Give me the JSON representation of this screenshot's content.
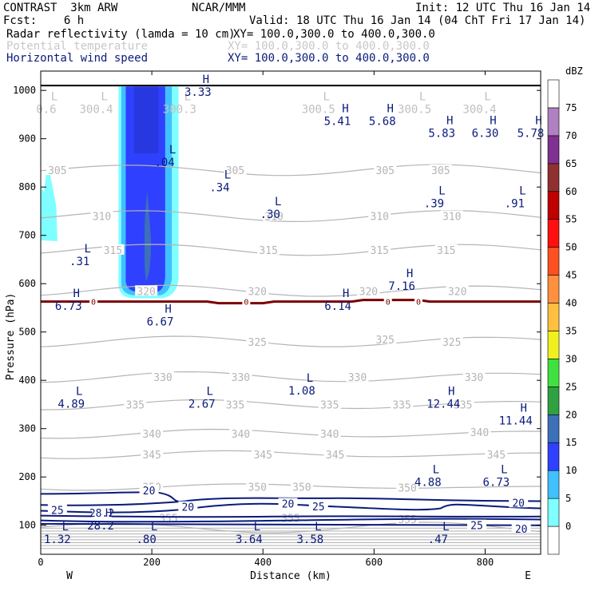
{
  "header": {
    "model": "CONTRAST  3km ARW",
    "org": "NCAR/MMM",
    "init": "Init: 12 UTC Thu 16 Jan 14",
    "fcst": "Fcst:    6 h",
    "valid": "Valid: 18 UTC Thu 16 Jan 14 (04 ChT Fri 17 Jan 14)",
    "field1_name": "Radar reflectivity (lamda = 10 cm)",
    "field1_xy": "XY= 100.0,300.0 to 400.0,300.0",
    "field2_name": "Potential temperature",
    "field2_xy": "XY= 100.0,300.0 to 400.0,300.0",
    "field3_name": "Horizontal wind speed",
    "field3_xy": "XY= 100.0,300.0 to 400.0,300.0"
  },
  "colors": {
    "navy": "#0a1a7a",
    "theta": "#b4b4b4",
    "freezing": "#7a0000",
    "ground": "#000000"
  },
  "chart_data": {
    "type": "cross-section",
    "xlabel": "Distance (km)",
    "ylabel": "Pressure (hPa)",
    "xlim": [
      0,
      900
    ],
    "ylim": [
      1040,
      40
    ],
    "x_ticks": [
      0,
      200,
      400,
      600,
      800
    ],
    "y_ticks": [
      100,
      200,
      300,
      400,
      500,
      600,
      700,
      800,
      900,
      1000
    ],
    "west_label": "W",
    "east_label": "E",
    "ground_p": 1010,
    "colorbar": {
      "unit": "dBZ",
      "levels": [
        0,
        5,
        10,
        15,
        20,
        25,
        30,
        35,
        40,
        45,
        50,
        55,
        60,
        65,
        70,
        75
      ],
      "colors": [
        "#ffffff",
        "#7fffff",
        "#40c0ff",
        "#3040ff",
        "#3c70b8",
        "#30a040",
        "#40e040",
        "#f0f020",
        "#ffc040",
        "#ff9040",
        "#ff5020",
        "#ff1010",
        "#c00000",
        "#903030",
        "#803090",
        "#b080c0",
        "#ffffff"
      ]
    },
    "theta_contours": [
      {
        "value": 350,
        "p": 180,
        "labels": [
          [
            200,
            180
          ],
          [
            390,
            180
          ],
          [
            470,
            180
          ],
          [
            660,
            178
          ]
        ]
      },
      {
        "value": 345,
        "p": 247,
        "labels": [
          [
            200,
            247
          ],
          [
            400,
            247
          ],
          [
            530,
            247
          ],
          [
            820,
            247
          ]
        ]
      },
      {
        "value": 340,
        "p": 290,
        "labels": [
          [
            200,
            290
          ],
          [
            360,
            290
          ],
          [
            520,
            290
          ],
          [
            790,
            293
          ]
        ]
      },
      {
        "value": 335,
        "p": 350,
        "labels": [
          [
            170,
            350
          ],
          [
            350,
            350
          ],
          [
            520,
            350
          ],
          [
            650,
            350
          ],
          [
            760,
            350
          ]
        ]
      },
      {
        "value": 330,
        "p": 407,
        "labels": [
          [
            220,
            407
          ],
          [
            360,
            407
          ],
          [
            570,
            407
          ],
          [
            780,
            407
          ]
        ]
      },
      {
        "value": 325,
        "p": 480,
        "labels": [
          [
            390,
            480
          ],
          [
            620,
            485
          ],
          [
            740,
            480
          ]
        ]
      },
      {
        "value": 320,
        "p": 585,
        "labels": [
          [
            190,
            585
          ],
          [
            390,
            585
          ],
          [
            590,
            585
          ],
          [
            750,
            585
          ]
        ]
      },
      {
        "value": 315,
        "p": 670,
        "labels": [
          [
            130,
            670
          ],
          [
            410,
            670
          ],
          [
            610,
            670
          ],
          [
            730,
            670
          ]
        ]
      },
      {
        "value": 310,
        "p": 740,
        "labels": [
          [
            110,
            740
          ],
          [
            420,
            740
          ],
          [
            610,
            740
          ],
          [
            740,
            740
          ]
        ]
      },
      {
        "value": 305,
        "p": 835,
        "labels": [
          [
            30,
            835
          ],
          [
            350,
            835
          ],
          [
            620,
            835
          ],
          [
            720,
            835
          ]
        ]
      },
      {
        "value": 355,
        "p": 95,
        "labels": [
          [
            230,
            115
          ],
          [
            450,
            115
          ],
          [
            660,
            113
          ]
        ]
      }
    ],
    "freezing_level": {
      "value": 0,
      "p": 563,
      "label_x": [
        95,
        370,
        625,
        680
      ]
    },
    "wind_labels": [
      {
        "text": "25",
        "x": 30,
        "p": 132
      },
      {
        "text": "28.2",
        "x": 110,
        "p": 126
      },
      {
        "text": "20",
        "x": 265,
        "p": 138
      },
      {
        "text": "20",
        "x": 445,
        "p": 145
      },
      {
        "text": "25",
        "x": 500,
        "p": 139
      },
      {
        "text": "20",
        "x": 195,
        "p": 172
      },
      {
        "text": "20",
        "x": 860,
        "p": 147
      },
      {
        "text": "25",
        "x": 785,
        "p": 100
      },
      {
        "text": "20",
        "x": 865,
        "p": 93
      }
    ],
    "extrema": [
      {
        "t": "L",
        "v": "1.32",
        "x": 30,
        "p": 80,
        "c": "navy"
      },
      {
        "t": "L",
        "v": ".80",
        "x": 190,
        "p": 80,
        "c": "navy"
      },
      {
        "t": "L",
        "v": "3.64",
        "x": 375,
        "p": 80,
        "c": "navy"
      },
      {
        "t": "L",
        "v": "3.58",
        "x": 485,
        "p": 80,
        "c": "navy"
      },
      {
        "t": "L",
        "v": ".47",
        "x": 715,
        "p": 80,
        "c": "navy"
      },
      {
        "t": "H",
        "v": "28.2",
        "x": 108,
        "p": 108,
        "c": "navy"
      },
      {
        "t": "L",
        "v": "4.88",
        "x": 697,
        "p": 198,
        "c": "navy"
      },
      {
        "t": "L",
        "v": "6.73",
        "x": 820,
        "p": 198,
        "c": "navy"
      },
      {
        "t": "H",
        "v": "11.44",
        "x": 855,
        "p": 325,
        "c": "navy"
      },
      {
        "t": "L",
        "v": "4.89",
        "x": 55,
        "p": 360,
        "c": "navy"
      },
      {
        "t": "L",
        "v": "2.67",
        "x": 290,
        "p": 360,
        "c": "navy"
      },
      {
        "t": "H",
        "v": "12.44",
        "x": 725,
        "p": 360,
        "c": "navy"
      },
      {
        "t": "L",
        "v": "1.08",
        "x": 470,
        "p": 387,
        "c": "navy"
      },
      {
        "t": "H",
        "v": "6.67",
        "x": 215,
        "p": 530,
        "c": "navy"
      },
      {
        "t": "H",
        "v": "6.73",
        "x": 50,
        "p": 562,
        "c": "navy"
      },
      {
        "t": "H",
        "v": "6.14",
        "x": 535,
        "p": 562,
        "c": "navy"
      },
      {
        "t": "H",
        "v": "7.16",
        "x": 650,
        "p": 604,
        "c": "navy"
      },
      {
        "t": "L",
        "v": ".31",
        "x": 70,
        "p": 655,
        "c": "navy"
      },
      {
        "t": "L",
        "v": ".30",
        "x": 413,
        "p": 752,
        "c": "navy"
      },
      {
        "t": "L",
        "v": ".39",
        "x": 708,
        "p": 775,
        "c": "navy"
      },
      {
        "t": "L",
        "v": ".91",
        "x": 853,
        "p": 775,
        "c": "navy"
      },
      {
        "t": "L",
        "v": ".34",
        "x": 322,
        "p": 808,
        "c": "navy"
      },
      {
        "t": "L",
        "v": ".04",
        "x": 223,
        "p": 860,
        "c": "navy"
      },
      {
        "t": "H",
        "v": "5.83",
        "x": 722,
        "p": 920,
        "c": "navy"
      },
      {
        "t": "H",
        "v": "6.30",
        "x": 800,
        "p": 920,
        "c": "navy"
      },
      {
        "t": "H",
        "v": "5.78",
        "x": 882,
        "p": 920,
        "c": "navy"
      },
      {
        "t": "H",
        "v": "5.41",
        "x": 534,
        "p": 945,
        "c": "navy"
      },
      {
        "t": "H",
        "v": "5.68",
        "x": 615,
        "p": 945,
        "c": "navy"
      },
      {
        "t": "L",
        "v": "0.6",
        "x": 10,
        "p": 970,
        "c": "gray"
      },
      {
        "t": "L",
        "v": "300.4",
        "x": 100,
        "p": 970,
        "c": "gray"
      },
      {
        "t": "L",
        "v": "300.3",
        "x": 250,
        "p": 970,
        "c": "gray"
      },
      {
        "t": "L",
        "v": "300.5",
        "x": 500,
        "p": 970,
        "c": "gray"
      },
      {
        "t": "L",
        "v": "300.5",
        "x": 673,
        "p": 970,
        "c": "gray"
      },
      {
        "t": "L",
        "v": "300.4",
        "x": 790,
        "p": 970,
        "c": "gray"
      },
      {
        "t": "H",
        "v": "3.33",
        "x": 283,
        "p": 1005,
        "c": "navy"
      }
    ]
  }
}
